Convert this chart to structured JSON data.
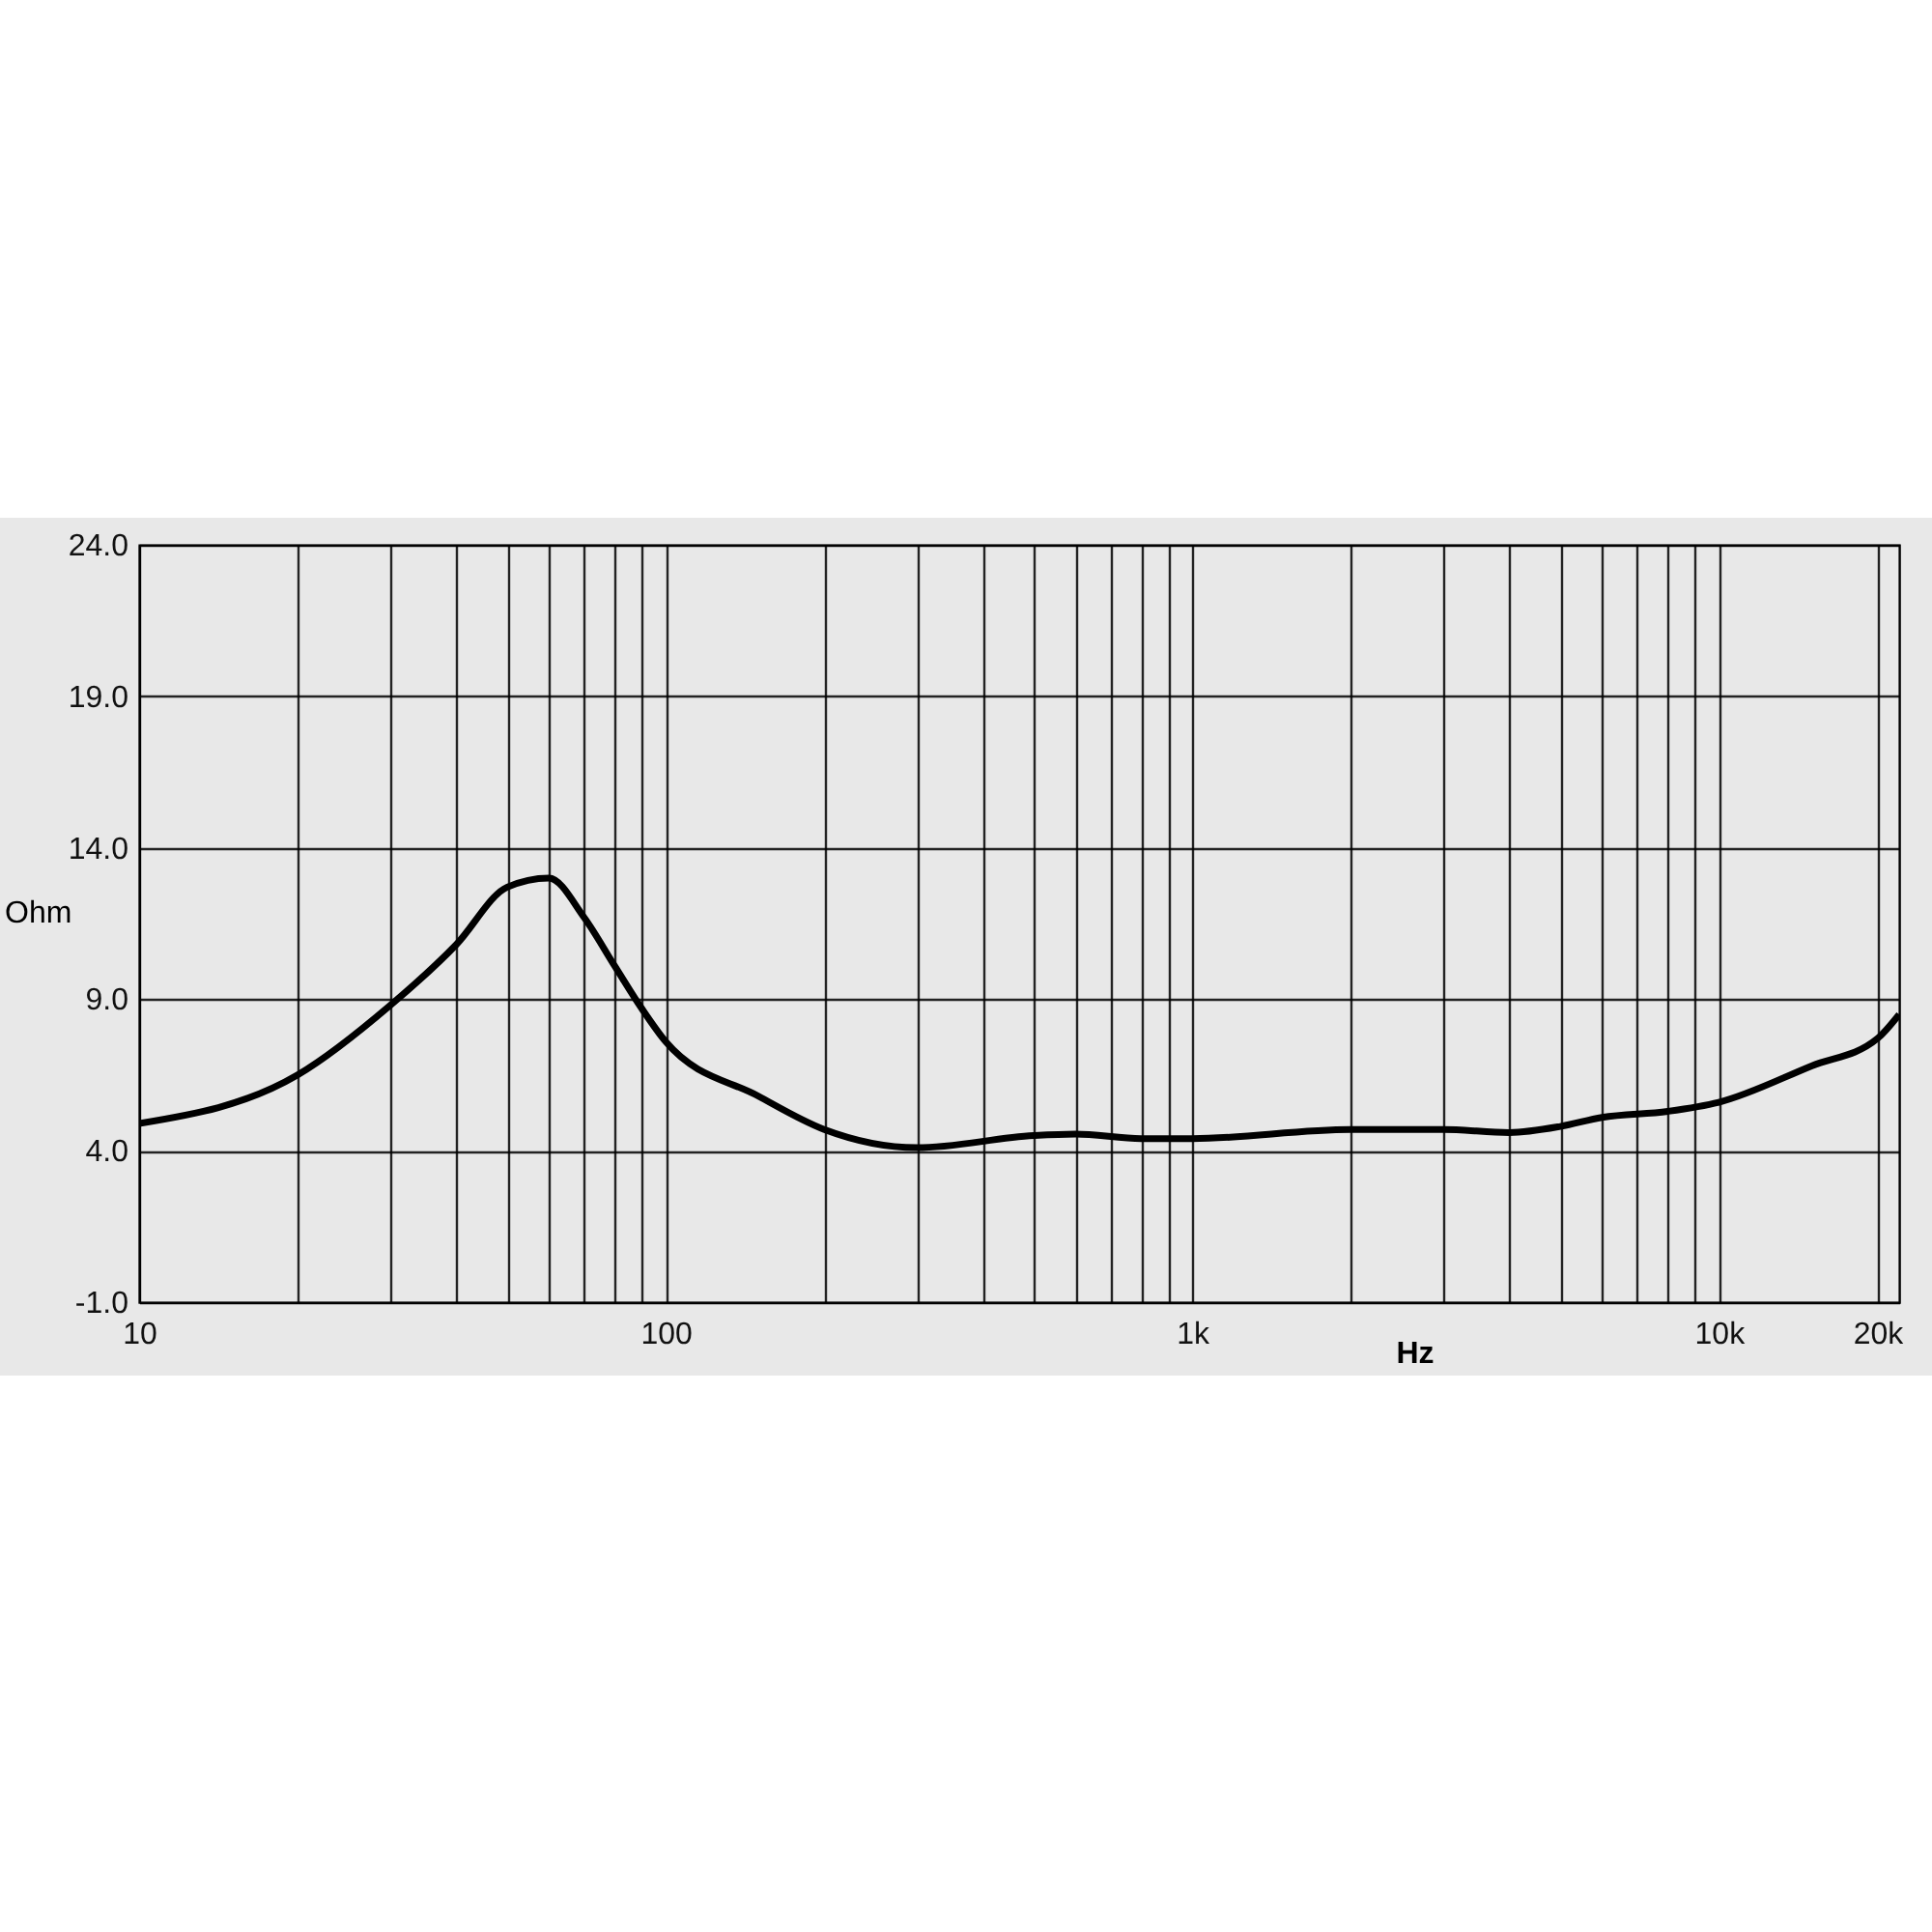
{
  "chart_data": {
    "type": "line",
    "xlabel": "Hz",
    "ylabel": "Ohm",
    "x": [
      10,
      20,
      30,
      40,
      50,
      60,
      70,
      80,
      90,
      100,
      150,
      200,
      300,
      500,
      600,
      800,
      1000,
      2000,
      3000,
      4000,
      5000,
      6000,
      8000,
      10000,
      15000,
      20000,
      22000
    ],
    "series": [
      {
        "color": "#000000",
        "values": [
          4.9,
          6.5,
          8.8,
          10.8,
          12.7,
          13.0,
          11.7,
          10.1,
          8.7,
          7.6,
          5.8,
          4.7,
          4.1,
          4.5,
          4.55,
          4.4,
          4.4,
          4.7,
          4.7,
          4.6,
          4.8,
          5.1,
          5.3,
          5.6,
          6.8,
          7.7,
          8.5
        ]
      }
    ],
    "log": "x",
    "grid": true,
    "line_style": "solid",
    "marker": "none",
    "xlim": [
      10,
      22000
    ],
    "ylim": [
      -1,
      24
    ],
    "xticks": [
      {
        "value": 10,
        "label": "10"
      },
      {
        "value": 20,
        "label": null
      },
      {
        "value": 30,
        "label": null
      },
      {
        "value": 40,
        "label": null
      },
      {
        "value": 50,
        "label": null
      },
      {
        "value": 60,
        "label": null
      },
      {
        "value": 70,
        "label": null
      },
      {
        "value": 80,
        "label": null
      },
      {
        "value": 90,
        "label": null
      },
      {
        "value": 100,
        "label": "100"
      },
      {
        "value": 200,
        "label": null
      },
      {
        "value": 300,
        "label": null
      },
      {
        "value": 400,
        "label": null
      },
      {
        "value": 500,
        "label": null
      },
      {
        "value": 600,
        "label": null
      },
      {
        "value": 700,
        "label": null
      },
      {
        "value": 800,
        "label": null
      },
      {
        "value": 900,
        "label": null
      },
      {
        "value": 1000,
        "label": "1k"
      },
      {
        "value": 2000,
        "label": null
      },
      {
        "value": 3000,
        "label": null
      },
      {
        "value": 4000,
        "label": null
      },
      {
        "value": 5000,
        "label": null
      },
      {
        "value": 6000,
        "label": null
      },
      {
        "value": 7000,
        "label": null
      },
      {
        "value": 8000,
        "label": null
      },
      {
        "value": 9000,
        "label": null
      },
      {
        "value": 10000,
        "label": "10k"
      },
      {
        "value": 20000,
        "label": "20k"
      }
    ],
    "yticks": [
      {
        "value": -1,
        "label": "-1.0"
      },
      {
        "value": 4,
        "label": "4.0"
      },
      {
        "value": 9,
        "label": "9.0"
      },
      {
        "value": 14,
        "label": "14.0"
      },
      {
        "value": 19,
        "label": "19.0"
      },
      {
        "value": 24,
        "label": "24.0"
      }
    ]
  }
}
